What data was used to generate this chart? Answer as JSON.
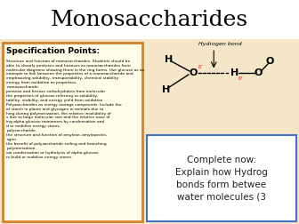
{
  "title": "Monosaccharides",
  "title_fontsize": 18,
  "bg_color": "#f5e6c8",
  "title_bg": "#ffffff",
  "left_box_color": "#d4822a",
  "right_bottom_box_color": "#4472c4",
  "spec_title": "Specification Points:",
  "hbond_label": "Hydrogen bond",
  "complete_now_text": "Complete now:\nExplain how Hydrog\nbonds form betwee\nwater molecules (3",
  "complete_now_fontsize": 7.5,
  "spec_text": "Structure and function of monosaccharides. Students should be\nable to classify pentoses and hexoses as monosaccharides from\nmolecular diagrams showing them in the ring forms. Use glucose as an\nexample to link between the properties of a monosaccharide and\nemphasizing solubility, transportability, chemical stability\nenergy from oxidation as properties.\nmonosaccharide.\npentose and hexose carbohydrates from molecular\ndiagrams.\nthe properties of glucose referring to solubility,\ntability, stability, and energy yield from oxidation.\nPolysaccharides as energy storage compounds. Include the\nof starch in plants and glycogen in animals due to\nhing during polymerization, the relative insolubility of\ns due to large molecular size and the relative ease of\ning alpha-glucose monomers by condensation and\nd or mobilize energy stores.\npolysaccharide.\nthe structure and function of amylose, amylopectin,\nogen.\nthe benefit of polysaccharide coiling and branching\npolymerization.\now condensation or hydrolysis of alpha-glucose\nrs build or mobilize energy stores."
}
